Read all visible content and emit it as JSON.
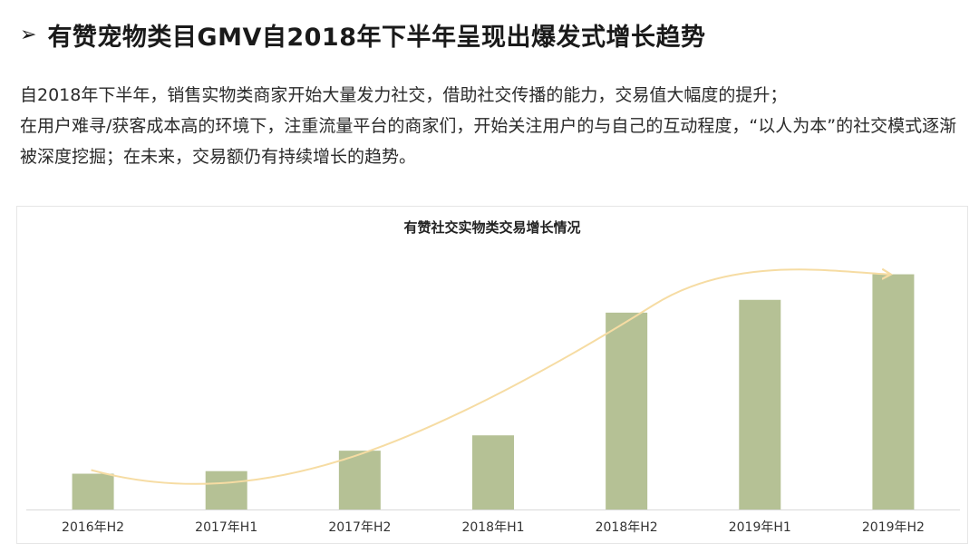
{
  "heading": {
    "arrow": "➢",
    "title": "有赞宠物类目GMV自2018年下半年呈现出爆发式增长趋势"
  },
  "description": {
    "line1": "自2018年下半年，销售实物类商家开始大量发力社交，借助社交传播的能力，交易值大幅度的提升；",
    "line2": "在用户难寻/获客成本高的环境下，注重流量平台的商家们，开始关注用户的与自己的互动程度，“以人为本”的社交模式逐渐被深度挖掘；在未来，交易额仍有持续增长的趋势。"
  },
  "colors": {
    "bar": "#b5c195",
    "trend": "#f6dca3",
    "axis": "#d9d9d9"
  },
  "chart_data": {
    "type": "bar",
    "title": "有赞社交实物类交易增长情况",
    "categories": [
      "2016年H2",
      "2017年H1",
      "2017年H2",
      "2018年H1",
      "2018年H2",
      "2019年H1",
      "2019年H2"
    ],
    "values": [
      14,
      15,
      23,
      29,
      77,
      82,
      92
    ],
    "ylim": [
      0,
      100
    ],
    "yaxis_shown": false,
    "grid": false,
    "trend_arrow": true
  }
}
